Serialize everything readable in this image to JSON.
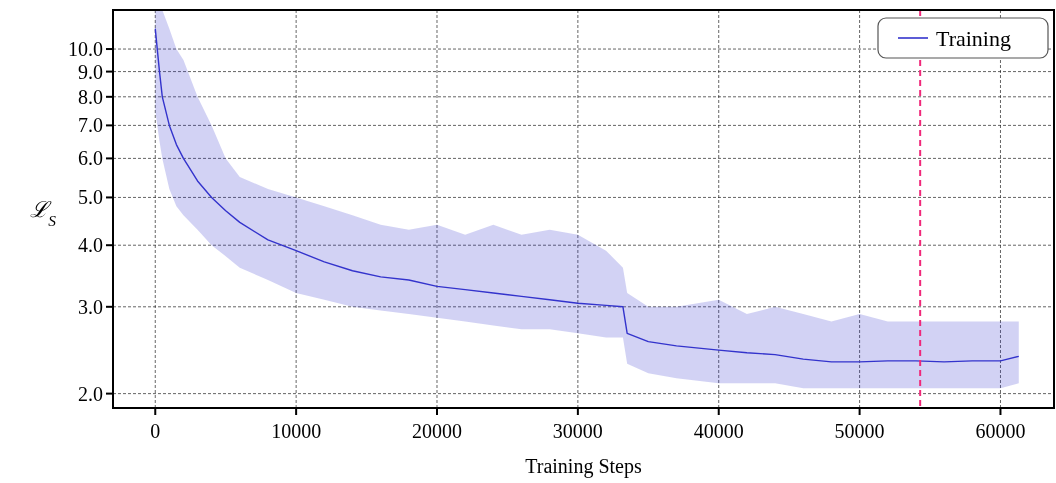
{
  "chart_data": {
    "type": "line",
    "xlabel": "Training Steps",
    "ylabel": "ℒ$_{S}$",
    "log": "y",
    "grid": true,
    "legend": "top right",
    "line_style": "solid",
    "marker": "none",
    "xlim": [
      -3000,
      63800
    ],
    "xticks": [
      0,
      10000,
      20000,
      30000,
      40000,
      50000,
      60000
    ],
    "ylim": [
      1.87,
      12
    ],
    "yticks": [
      {
        "value": 2,
        "label": "2.0"
      },
      {
        "value": 3,
        "label": "3.0"
      },
      {
        "value": 4,
        "label": "4.0"
      },
      {
        "value": 5,
        "label": "5.0"
      },
      {
        "value": 6,
        "label": "6.0"
      },
      {
        "value": 7,
        "label": "7.0"
      },
      {
        "value": 8,
        "label": "8.0"
      },
      {
        "value": 9,
        "label": "9.0"
      },
      {
        "value": 10,
        "label": "10.0"
      }
    ],
    "ref_lines": [
      {
        "axis": "x",
        "value": 54300,
        "color": "#f0287a",
        "line_style": "dashed"
      }
    ],
    "series": [
      {
        "name": "Training",
        "color": "#3333cc",
        "x": [
          0,
          300,
          500,
          1000,
          1500,
          2000,
          3000,
          4000,
          5000,
          6000,
          8000,
          10000,
          12000,
          14000,
          16000,
          18000,
          20000,
          22000,
          24000,
          26000,
          28000,
          30000,
          32000,
          33200,
          33500,
          35000,
          37000,
          40000,
          42000,
          44000,
          46000,
          48000,
          50000,
          52000,
          54000,
          56000,
          58000,
          60000,
          61300
        ],
        "values": [
          11,
          9,
          8.0,
          7.0,
          6.4,
          6.0,
          5.4,
          5.0,
          4.7,
          4.45,
          4.1,
          3.9,
          3.7,
          3.55,
          3.45,
          3.4,
          3.3,
          3.25,
          3.2,
          3.15,
          3.1,
          3.05,
          3.02,
          3.0,
          2.65,
          2.55,
          2.5,
          2.45,
          2.42,
          2.4,
          2.35,
          2.32,
          2.32,
          2.33,
          2.33,
          2.32,
          2.33,
          2.33,
          2.38
        ],
        "lower": [
          7.5,
          6.5,
          6.0,
          5.2,
          4.8,
          4.6,
          4.3,
          4.0,
          3.8,
          3.6,
          3.4,
          3.2,
          3.1,
          3.0,
          2.95,
          2.9,
          2.85,
          2.8,
          2.75,
          2.7,
          2.7,
          2.65,
          2.6,
          2.6,
          2.3,
          2.2,
          2.15,
          2.1,
          2.1,
          2.1,
          2.05,
          2.05,
          2.05,
          2.05,
          2.05,
          2.05,
          2.05,
          2.05,
          2.1
        ],
        "upper": [
          12,
          12,
          12,
          11,
          10,
          9.5,
          8.0,
          7.0,
          6.0,
          5.5,
          5.2,
          5.0,
          4.8,
          4.6,
          4.4,
          4.3,
          4.4,
          4.2,
          4.4,
          4.2,
          4.3,
          4.2,
          3.9,
          3.6,
          3.2,
          3.0,
          3.0,
          3.1,
          2.9,
          3.0,
          2.9,
          2.8,
          2.9,
          2.8,
          2.8,
          2.8,
          2.8,
          2.8,
          2.8
        ]
      }
    ]
  }
}
